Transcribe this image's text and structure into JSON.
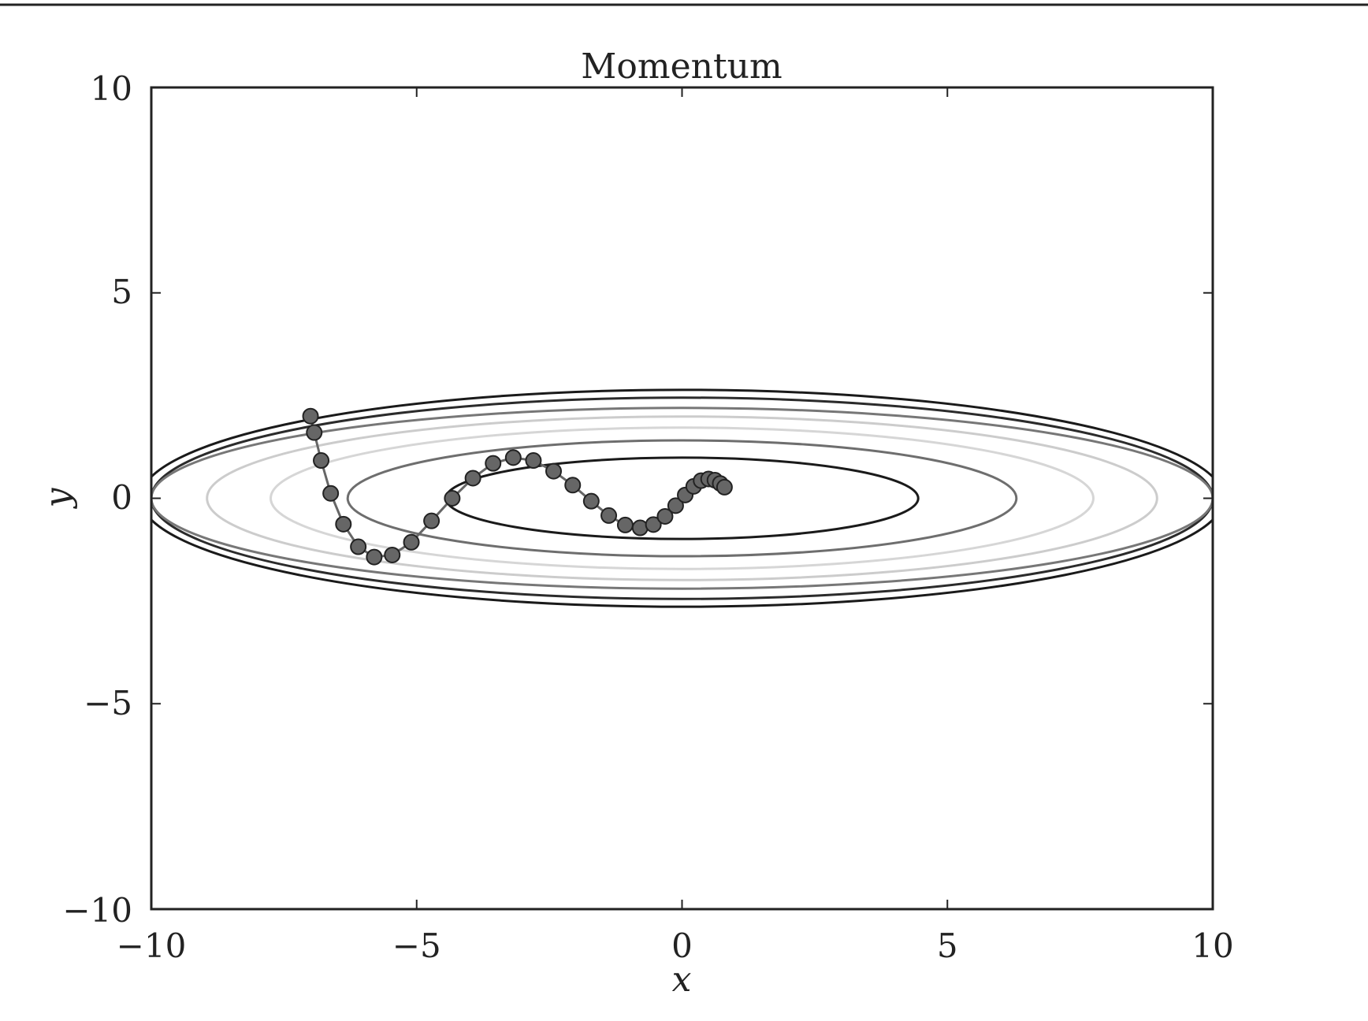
{
  "chart_data": {
    "type": "line",
    "title": "Momentum",
    "xlabel": "x",
    "ylabel": "y",
    "xlim": [
      -10,
      10
    ],
    "ylim": [
      -10,
      10
    ],
    "xticks": [
      -10,
      -5,
      0,
      5,
      10
    ],
    "yticks": [
      -10,
      -5,
      0,
      5,
      10
    ],
    "x_tick_labels": [
      "−10",
      "−5",
      "0",
      "5",
      "10"
    ],
    "y_tick_labels": [
      "−10",
      "−5",
      "0",
      "5",
      "10"
    ],
    "grid": false,
    "contours": [
      {
        "a": 10.2,
        "b": 2.64,
        "color": "#1a1a1a"
      },
      {
        "a": 10.0,
        "b": 2.45,
        "color": "#2b2b2b"
      },
      {
        "a": 10.0,
        "b": 2.2,
        "color": "#777777"
      },
      {
        "a": 8.95,
        "b": 1.99,
        "color": "#cccccc"
      },
      {
        "a": 7.75,
        "b": 1.72,
        "color": "#d6d6d6"
      },
      {
        "a": 6.3,
        "b": 1.41,
        "color": "#6e6e6e"
      },
      {
        "a": 4.45,
        "b": 0.99,
        "color": "#1a1a1a"
      }
    ],
    "series": [
      {
        "color": "#666666",
        "x": [
          -7.0,
          -6.93,
          -6.8,
          -6.62,
          -6.38,
          -6.1,
          -5.8,
          -5.46,
          -5.1,
          -4.72,
          -4.33,
          -3.94,
          -3.56,
          -3.18,
          -2.8,
          -2.42,
          -2.06,
          -1.71,
          -1.38,
          -1.07,
          -0.79,
          -0.54,
          -0.32,
          -0.12,
          0.06,
          0.22,
          0.36,
          0.5,
          0.62,
          0.72,
          0.8
        ],
        "y": [
          2.0,
          1.6,
          0.92,
          0.12,
          -0.63,
          -1.18,
          -1.43,
          -1.38,
          -1.07,
          -0.55,
          0.0,
          0.49,
          0.85,
          0.99,
          0.92,
          0.66,
          0.32,
          -0.07,
          -0.42,
          -0.65,
          -0.72,
          -0.64,
          -0.44,
          -0.18,
          0.08,
          0.29,
          0.43,
          0.47,
          0.44,
          0.36,
          0.27
        ]
      }
    ]
  }
}
